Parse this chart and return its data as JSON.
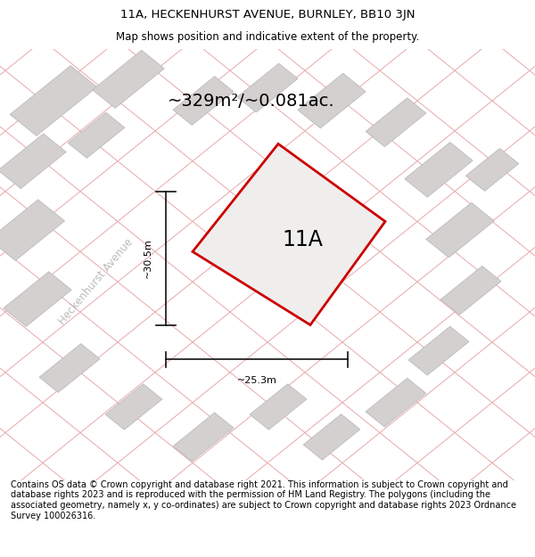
{
  "title_line1": "11A, HECKENHURST AVENUE, BURNLEY, BB10 3JN",
  "title_line2": "Map shows position and indicative extent of the property.",
  "area_label": "~329m²/~0.081ac.",
  "property_label": "11A",
  "width_label": "~25.3m",
  "height_label": "~30.5m",
  "street_label": "Heckenhurst Avenue",
  "footer_text": "Contains OS data © Crown copyright and database right 2021. This information is subject to Crown copyright and database rights 2023 and is reproduced with the permission of HM Land Registry. The polygons (including the associated geometry, namely x, y co-ordinates) are subject to Crown copyright and database rights 2023 Ordnance Survey 100026316.",
  "map_bg": "#f7f3f3",
  "property_fill": "#f0eded",
  "property_edge": "#cc0000",
  "building_fill": "#d4d0d0",
  "building_edge": "#bbbbbb",
  "road_line_color": "#e8a8a8",
  "dim_line_color": "#111111",
  "street_color": "#bbbbbb",
  "title_fontsize": 9.5,
  "subtitle_fontsize": 8.5,
  "area_fontsize": 14,
  "label_fontsize": 17,
  "footer_fontsize": 7.0,
  "street_fontsize": 8.5,
  "road_lw": 0.7,
  "building_lw": 0.6,
  "property_lw": 2.0,
  "dim_lw": 1.2
}
